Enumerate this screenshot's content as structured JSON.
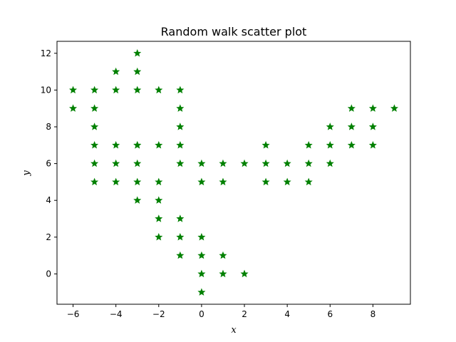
{
  "chart_data": {
    "type": "scatter",
    "title": "Random walk scatter plot",
    "xlabel": "x",
    "ylabel": "y",
    "xlim": [
      -6.75,
      9.75
    ],
    "ylim": [
      -1.65,
      12.65
    ],
    "xticks": [
      -6,
      -4,
      -2,
      0,
      2,
      4,
      6,
      8
    ],
    "yticks": [
      0,
      2,
      4,
      6,
      8,
      10,
      12
    ],
    "grid": false,
    "marker": "star",
    "marker_color": "#008000",
    "series": [
      {
        "x": [
          -6,
          -6,
          -5,
          -5,
          -5,
          -5,
          -5,
          -5,
          -4,
          -4,
          -4,
          -4,
          -4,
          -3,
          -3,
          -3,
          -3,
          -3,
          -3,
          -3,
          -3,
          -2,
          -2,
          -2,
          -2,
          -2,
          -2,
          -1,
          -1,
          -1,
          -1,
          -1,
          -1,
          -1,
          -1,
          0,
          0,
          0,
          0,
          0,
          0,
          1,
          1,
          1,
          1,
          2,
          2,
          3,
          3,
          3,
          4,
          4,
          5,
          5,
          5,
          6,
          6,
          6,
          7,
          7,
          7,
          8,
          8,
          8,
          9
        ],
        "y": [
          10,
          9,
          10,
          9,
          8,
          7,
          6,
          5,
          11,
          10,
          7,
          6,
          5,
          12,
          11,
          10,
          7,
          6,
          5,
          4,
          7,
          10,
          7,
          5,
          4,
          3,
          2,
          10,
          9,
          8,
          7,
          6,
          3,
          2,
          1,
          6,
          5,
          2,
          1,
          0,
          -1,
          6,
          5,
          1,
          0,
          6,
          0,
          7,
          6,
          5,
          6,
          5,
          7,
          6,
          5,
          8,
          7,
          6,
          9,
          8,
          7,
          9,
          8,
          7,
          9
        ]
      }
    ]
  }
}
